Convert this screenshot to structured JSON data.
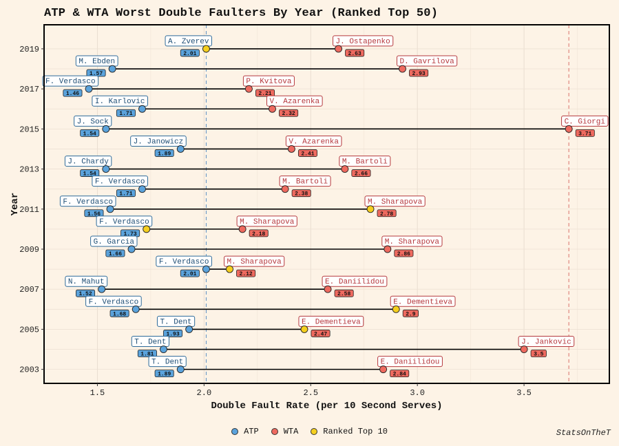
{
  "chart_data": {
    "type": "dumbbell",
    "title": "ATP & WTA Worst Double Faulters By Year (Ranked Top 50)",
    "xlabel": "Double Fault Rate (per 10 Second Serves)",
    "ylabel": "Year",
    "xlim": [
      1.25,
      3.9
    ],
    "ylim": [
      2002.3,
      2020.2
    ],
    "x_ticks": [
      1.5,
      2.0,
      2.5,
      3.0,
      3.5
    ],
    "x_tick_labels": [
      "1.5",
      "2.0",
      "2.5",
      "3.0",
      "3.5"
    ],
    "y_ticks": [
      2003,
      2005,
      2007,
      2009,
      2011,
      2013,
      2015,
      2017,
      2019
    ],
    "y_tick_labels": [
      "2003",
      "2005",
      "2007",
      "2009",
      "2011",
      "2013",
      "2015",
      "2017",
      "2019"
    ],
    "grid": true,
    "reference_lines": [
      2.01,
      3.71
    ],
    "legend": {
      "position": "bottom",
      "entries": [
        {
          "label": "ATP",
          "color": "#5ba3dc"
        },
        {
          "label": "WTA",
          "color": "#ee6a5f"
        },
        {
          "label": "Ranked Top 10",
          "color": "#f5cf1f"
        }
      ]
    },
    "rows": [
      {
        "year": 2019,
        "atp": {
          "player": "A. Zverev",
          "rate": 2.01,
          "label": "2.01",
          "top10": true
        },
        "wta": {
          "player": "J. Ostapenko",
          "rate": 2.63,
          "label": "2.63",
          "top10": false
        }
      },
      {
        "year": 2018,
        "atp": {
          "player": "M. Ebden",
          "rate": 1.57,
          "label": "1.57",
          "top10": false
        },
        "wta": {
          "player": "D. Gavrilova",
          "rate": 2.93,
          "label": "2.93",
          "top10": false
        }
      },
      {
        "year": 2017,
        "atp": {
          "player": "F. Verdasco",
          "rate": 1.46,
          "label": "1.46",
          "top10": false
        },
        "wta": {
          "player": "P. Kvitova",
          "rate": 2.21,
          "label": "2.21",
          "top10": false
        }
      },
      {
        "year": 2016,
        "atp": {
          "player": "I. Karlovic",
          "rate": 1.71,
          "label": "1.71",
          "top10": false
        },
        "wta": {
          "player": "V. Azarenka",
          "rate": 2.32,
          "label": "2.32",
          "top10": false
        }
      },
      {
        "year": 2015,
        "atp": {
          "player": "J. Sock",
          "rate": 1.54,
          "label": "1.54",
          "top10": false
        },
        "wta": {
          "player": "C. Giorgi",
          "rate": 3.71,
          "label": "3.71",
          "top10": false
        }
      },
      {
        "year": 2014,
        "atp": {
          "player": "J. Janowicz",
          "rate": 1.89,
          "label": "1.89",
          "top10": false
        },
        "wta": {
          "player": "V. Azarenka",
          "rate": 2.41,
          "label": "2.41",
          "top10": false
        }
      },
      {
        "year": 2013,
        "atp": {
          "player": "J. Chardy",
          "rate": 1.54,
          "label": "1.54",
          "top10": false
        },
        "wta": {
          "player": "M. Bartoli",
          "rate": 2.66,
          "label": "2.66",
          "top10": false
        }
      },
      {
        "year": 2012,
        "atp": {
          "player": "F. Verdasco",
          "rate": 1.71,
          "label": "1.71",
          "top10": false
        },
        "wta": {
          "player": "M. Bartoli",
          "rate": 2.38,
          "label": "2.38",
          "top10": false
        }
      },
      {
        "year": 2011,
        "atp": {
          "player": "F. Verdasco",
          "rate": 1.56,
          "label": "1.56",
          "top10": false
        },
        "wta": {
          "player": "M. Sharapova",
          "rate": 2.78,
          "label": "2.78",
          "top10": true
        }
      },
      {
        "year": 2010,
        "atp": {
          "player": "F. Verdasco",
          "rate": 1.73,
          "label": "1.73",
          "top10": true
        },
        "wta": {
          "player": "M. Sharapova",
          "rate": 2.18,
          "label": "2.18",
          "top10": false
        }
      },
      {
        "year": 2009,
        "atp": {
          "player": "G. Garcia",
          "rate": 1.66,
          "label": "1.66",
          "top10": false
        },
        "wta": {
          "player": "M. Sharapova",
          "rate": 2.86,
          "label": "2.86",
          "top10": false
        }
      },
      {
        "year": 2008,
        "atp": {
          "player": "F. Verdasco",
          "rate": 2.01,
          "label": "2.01",
          "top10": false
        },
        "wta": {
          "player": "M. Sharapova",
          "rate": 2.12,
          "label": "2.12",
          "top10": true
        }
      },
      {
        "year": 2007,
        "atp": {
          "player": "N. Mahut",
          "rate": 1.52,
          "label": "1.52",
          "top10": false
        },
        "wta": {
          "player": "E. Daniilidou",
          "rate": 2.58,
          "label": "2.58",
          "top10": false
        }
      },
      {
        "year": 2006,
        "atp": {
          "player": "F. Verdasco",
          "rate": 1.68,
          "label": "1.68",
          "top10": false
        },
        "wta": {
          "player": "E. Dementieva",
          "rate": 2.9,
          "label": "2.9",
          "top10": true
        }
      },
      {
        "year": 2005,
        "atp": {
          "player": "T. Dent",
          "rate": 1.93,
          "label": "1.93",
          "top10": false
        },
        "wta": {
          "player": "E. Dementieva",
          "rate": 2.47,
          "label": "2.47",
          "top10": true
        }
      },
      {
        "year": 2004,
        "atp": {
          "player": "T. Dent",
          "rate": 1.81,
          "label": "1.81",
          "top10": false
        },
        "wta": {
          "player": "J. Jankovic",
          "rate": 3.5,
          "label": "3.5",
          "top10": false
        }
      },
      {
        "year": 2003,
        "atp": {
          "player": "T. Dent",
          "rate": 1.89,
          "label": "1.89",
          "top10": false
        },
        "wta": {
          "player": "E. Daniilidou",
          "rate": 2.84,
          "label": "2.84",
          "top10": false
        }
      }
    ],
    "caption": "StatsOnTheT"
  }
}
